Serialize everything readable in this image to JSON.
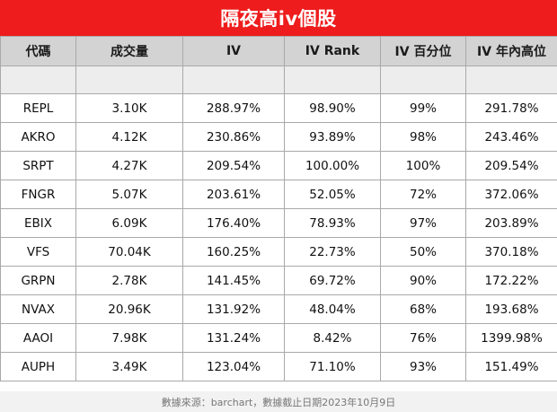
{
  "title": "隔夜高iv個股",
  "columns": [
    "代碼",
    "成交量",
    "IV",
    "IV Rank",
    "IV 百分位",
    "IV 年內高位"
  ],
  "rows": [
    [
      "REPL",
      "3.10K",
      "288.97%",
      "98.90%",
      "99%",
      "291.78%"
    ],
    [
      "AKRO",
      "4.12K",
      "230.86%",
      "93.89%",
      "98%",
      "243.46%"
    ],
    [
      "SRPT",
      "4.27K",
      "209.54%",
      "100.00%",
      "100%",
      "209.54%"
    ],
    [
      "FNGR",
      "5.07K",
      "203.61%",
      "52.05%",
      "72%",
      "372.06%"
    ],
    [
      "EBIX",
      "6.09K",
      "176.40%",
      "78.93%",
      "97%",
      "203.89%"
    ],
    [
      "VFS",
      "70.04K",
      "160.25%",
      "22.73%",
      "50%",
      "370.18%"
    ],
    [
      "GRPN",
      "2.78K",
      "141.45%",
      "69.72%",
      "90%",
      "172.22%"
    ],
    [
      "NVAX",
      "20.96K",
      "131.92%",
      "48.04%",
      "68%",
      "193.68%"
    ],
    [
      "AAOI",
      "7.98K",
      "131.24%",
      "8.42%",
      "76%",
      "1399.98%"
    ],
    [
      "AUPH",
      "3.49K",
      "123.04%",
      "71.10%",
      "93%",
      "151.49%"
    ]
  ],
  "footer": "數據來源：barchart，數據截止日期2023年10月9日",
  "colors": {
    "title_bg": "#ee1c1c",
    "header_bg": "#d3d3d3",
    "blank_row_bg": "#ededed",
    "border": "#a9a9a9"
  }
}
